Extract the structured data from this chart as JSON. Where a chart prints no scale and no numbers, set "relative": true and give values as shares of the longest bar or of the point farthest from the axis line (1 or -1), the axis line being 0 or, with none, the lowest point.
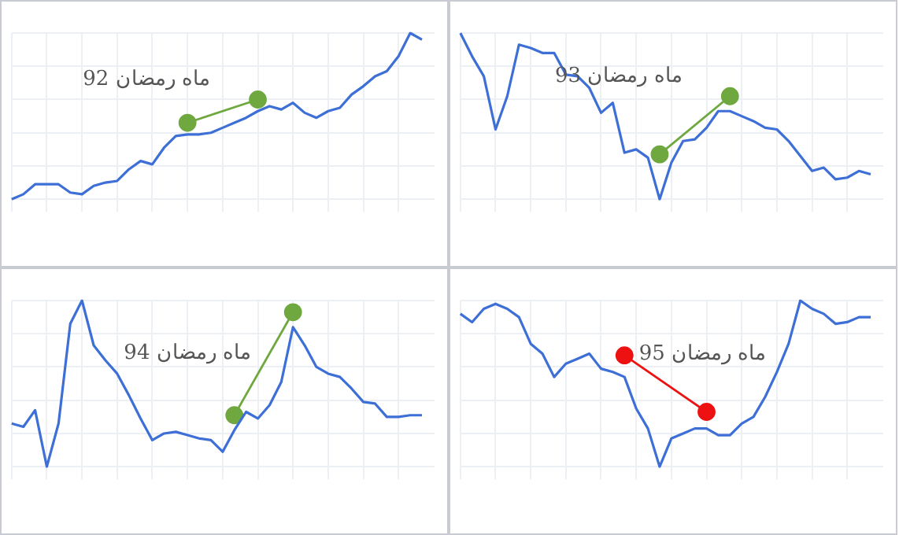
{
  "chart_data": [
    {
      "type": "line",
      "relative": true,
      "grid": true,
      "legend": false,
      "categories": [
        null,
        null,
        null,
        null,
        null,
        null,
        null,
        null,
        null,
        null,
        null,
        null,
        null,
        null,
        null,
        null,
        null,
        null,
        null,
        null,
        null,
        null,
        null,
        null,
        null,
        null,
        null,
        null,
        null,
        null,
        null,
        null,
        null,
        null,
        null,
        null
      ],
      "annotations": [
        "ماه رمضان 92"
      ],
      "series": [
        {
          "color": "#3d6fd6",
          "marker": "none",
          "values": [
            0,
            0.03,
            0.09,
            0.09,
            0.09,
            0.04,
            0.03,
            0.08,
            0.1,
            0.11,
            0.18,
            0.23,
            0.21,
            0.31,
            0.38,
            0.39,
            0.39,
            0.4,
            0.43,
            0.46,
            0.49,
            0.53,
            0.56,
            0.54,
            0.58,
            0.52,
            0.49,
            0.53,
            0.55,
            0.63,
            0.68,
            0.74,
            0.77,
            0.86,
            1,
            0.96
          ]
        },
        {
          "color": "#70a840",
          "marker": "circle",
          "values": [
            null,
            null,
            null,
            null,
            null,
            null,
            null,
            null,
            null,
            null,
            null,
            null,
            null,
            null,
            null,
            0.46,
            null,
            null,
            null,
            null,
            null,
            0.6,
            null,
            null,
            null,
            null,
            null,
            null,
            null,
            null,
            null,
            null,
            null,
            null,
            null,
            null
          ]
        }
      ]
    },
    {
      "type": "line",
      "relative": true,
      "grid": true,
      "legend": false,
      "categories": [
        null,
        null,
        null,
        null,
        null,
        null,
        null,
        null,
        null,
        null,
        null,
        null,
        null,
        null,
        null,
        null,
        null,
        null,
        null,
        null,
        null,
        null,
        null,
        null,
        null,
        null,
        null,
        null,
        null,
        null,
        null,
        null,
        null,
        null,
        null,
        null
      ],
      "annotations": [
        "ماه رمضان 93"
      ],
      "series": [
        {
          "color": "#3d6fd6",
          "marker": "none",
          "values": [
            1,
            0.86,
            0.74,
            0.42,
            0.62,
            0.93,
            0.91,
            0.88,
            0.88,
            0.75,
            0.74,
            0.67,
            0.52,
            0.58,
            0.28,
            0.3,
            0.25,
            0,
            0.22,
            0.35,
            0.36,
            0.43,
            0.53,
            0.53,
            0.5,
            0.47,
            0.43,
            0.42,
            0.35,
            0.26,
            0.17,
            0.19,
            0.12,
            0.13,
            0.17,
            0.15
          ]
        },
        {
          "color": "#70a840",
          "marker": "circle",
          "values": [
            null,
            null,
            null,
            null,
            null,
            null,
            null,
            null,
            null,
            null,
            null,
            null,
            null,
            null,
            null,
            null,
            null,
            0.27,
            null,
            null,
            null,
            null,
            null,
            0.62,
            null,
            null,
            null,
            null,
            null,
            null,
            null,
            null,
            null,
            null,
            null,
            null
          ]
        }
      ]
    },
    {
      "type": "line",
      "relative": true,
      "grid": true,
      "legend": false,
      "categories": [
        null,
        null,
        null,
        null,
        null,
        null,
        null,
        null,
        null,
        null,
        null,
        null,
        null,
        null,
        null,
        null,
        null,
        null,
        null,
        null,
        null,
        null,
        null,
        null,
        null,
        null,
        null,
        null,
        null,
        null,
        null,
        null,
        null,
        null,
        null,
        null
      ],
      "annotations": [
        "ماه رمضان 94"
      ],
      "series": [
        {
          "color": "#3d6fd6",
          "marker": "none",
          "values": [
            0.26,
            0.24,
            0.34,
            0,
            0.26,
            0.86,
            1,
            0.73,
            0.64,
            0.56,
            0.43,
            0.29,
            0.16,
            0.2,
            0.21,
            0.19,
            0.17,
            0.16,
            0.09,
            0.22,
            0.33,
            0.29,
            0.37,
            0.51,
            0.84,
            0.73,
            0.6,
            0.56,
            0.54,
            0.47,
            0.39,
            0.38,
            0.3,
            0.3,
            0.31,
            0.31
          ]
        },
        {
          "color": "#70a840",
          "marker": "circle",
          "values": [
            null,
            null,
            null,
            null,
            null,
            null,
            null,
            null,
            null,
            null,
            null,
            null,
            null,
            null,
            null,
            null,
            null,
            null,
            null,
            0.31,
            null,
            null,
            null,
            null,
            0.93,
            null,
            null,
            null,
            null,
            null,
            null,
            null,
            null,
            null,
            null,
            null
          ]
        }
      ]
    },
    {
      "type": "line",
      "relative": true,
      "grid": true,
      "legend": false,
      "categories": [
        null,
        null,
        null,
        null,
        null,
        null,
        null,
        null,
        null,
        null,
        null,
        null,
        null,
        null,
        null,
        null,
        null,
        null,
        null,
        null,
        null,
        null,
        null,
        null,
        null,
        null,
        null,
        null,
        null,
        null,
        null,
        null,
        null,
        null,
        null,
        null
      ],
      "annotations": [
        "ماه رمضان 95"
      ],
      "series": [
        {
          "color": "#3d6fd6",
          "marker": "none",
          "values": [
            0.92,
            0.87,
            0.95,
            0.98,
            0.95,
            0.9,
            0.74,
            0.68,
            0.54,
            0.62,
            0.65,
            0.68,
            0.59,
            0.57,
            0.54,
            0.35,
            0.23,
            0,
            0.17,
            0.2,
            0.23,
            0.23,
            0.19,
            0.19,
            0.26,
            0.3,
            0.42,
            0.57,
            0.74,
            1,
            0.95,
            0.92,
            0.86,
            0.87,
            0.9,
            0.9
          ]
        },
        {
          "color": "#ee1111",
          "marker": "circle",
          "values": [
            null,
            null,
            null,
            null,
            null,
            null,
            null,
            null,
            null,
            null,
            null,
            null,
            null,
            null,
            0.67,
            null,
            null,
            null,
            null,
            null,
            null,
            0.33,
            null,
            null,
            null,
            null,
            null,
            null,
            null,
            null,
            null,
            null,
            null,
            null,
            null,
            null
          ]
        }
      ]
    }
  ]
}
